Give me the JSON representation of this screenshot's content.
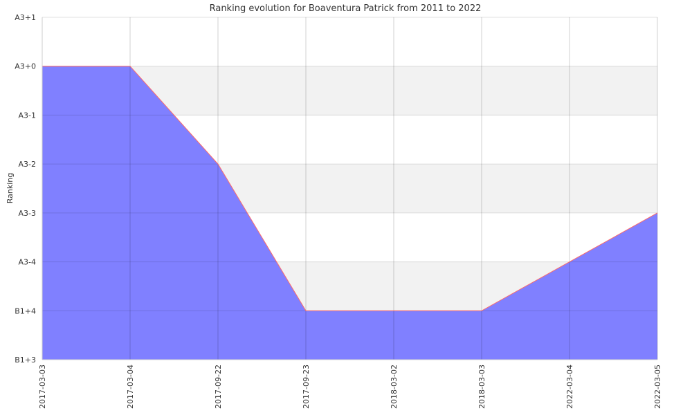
{
  "chart_data": {
    "type": "area",
    "title": "Ranking evolution for Boaventura Patrick from 2011 to 2022",
    "xlabel": "",
    "ylabel": "Ranking",
    "y_tick_labels": [
      "A3+1",
      "A3+0",
      "A3-1",
      "A3-2",
      "A3-3",
      "A3-4",
      "B1+4",
      "B1+3"
    ],
    "categories": [
      "2017-03-03",
      "2017-03-04",
      "2017-09-22",
      "2017-09-23",
      "2018-03-02",
      "2018-03-03",
      "2022-03-04",
      "2022-03-05"
    ],
    "series": [
      {
        "values": [
          "A3+0",
          "A3+0",
          "A3-2",
          "B1+4",
          "B1+4",
          "B1+4",
          "A3-4",
          "A3-3"
        ]
      }
    ],
    "grid": true,
    "fill_color": "#8080ff",
    "line_color": "#ff6b6b",
    "band_color": "#f2f2f2"
  }
}
